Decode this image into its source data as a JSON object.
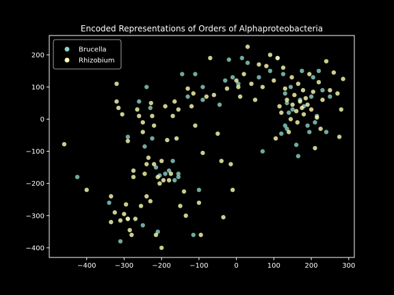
{
  "chart_data": {
    "type": "scatter",
    "title": "Encoded Representations of Orders of Alphaproteobacteria",
    "xlabel": "",
    "ylabel": "",
    "xlim": [
      -500,
      315
    ],
    "ylim": [
      -430,
      260
    ],
    "xticks": [
      -400,
      -300,
      -200,
      -100,
      0,
      100,
      200,
      300
    ],
    "yticks": [
      -400,
      -300,
      -200,
      -100,
      0,
      100,
      200
    ],
    "grid": false,
    "legend_position": "top-left",
    "series": [
      {
        "name": "Brucella",
        "color": "#8dd3c7",
        "points": [
          [
            -425,
            -180
          ],
          [
            -340,
            -260
          ],
          [
            -310,
            -380
          ],
          [
            -290,
            -55
          ],
          [
            -290,
            -310
          ],
          [
            -260,
            55
          ],
          [
            -250,
            -330
          ],
          [
            -245,
            -85
          ],
          [
            -240,
            100
          ],
          [
            -230,
            35
          ],
          [
            -225,
            -60
          ],
          [
            -215,
            -150
          ],
          [
            -210,
            -350
          ],
          [
            -205,
            -175
          ],
          [
            -190,
            -170
          ],
          [
            -180,
            -160
          ],
          [
            -170,
            -130
          ],
          [
            -165,
            -190
          ],
          [
            -155,
            -180
          ],
          [
            -155,
            -170
          ],
          [
            -145,
            140
          ],
          [
            -130,
            70
          ],
          [
            -115,
            -360
          ],
          [
            -110,
            140
          ],
          [
            -100,
            -220
          ],
          [
            -90,
            100
          ],
          [
            -90,
            60
          ],
          [
            -45,
            45
          ],
          [
            -30,
            120
          ],
          [
            -20,
            185
          ],
          [
            -10,
            130
          ],
          [
            5,
            110
          ],
          [
            15,
            190
          ],
          [
            30,
            175
          ],
          [
            60,
            130
          ],
          [
            70,
            -100
          ],
          [
            90,
            150
          ],
          [
            110,
            190
          ],
          [
            120,
            -45
          ],
          [
            125,
            140
          ],
          [
            130,
            -20
          ],
          [
            130,
            80
          ],
          [
            135,
            -30
          ],
          [
            135,
            50
          ],
          [
            140,
            20
          ],
          [
            145,
            100
          ],
          [
            150,
            30
          ],
          [
            160,
            -80
          ],
          [
            165,
            -115
          ],
          [
            170,
            60
          ],
          [
            175,
            150
          ],
          [
            180,
            40
          ],
          [
            190,
            -20
          ],
          [
            195,
            -40
          ],
          [
            200,
            70
          ],
          [
            205,
            130
          ],
          [
            210,
            -10
          ],
          [
            215,
            10
          ],
          [
            220,
            150
          ],
          [
            230,
            90
          ],
          [
            240,
            -40
          ],
          [
            250,
            70
          ]
        ]
      },
      {
        "name": "Rhizobium",
        "color": "#ffffb3",
        "points": [
          [
            -460,
            -78
          ],
          [
            -400,
            -220
          ],
          [
            -335,
            -240
          ],
          [
            -335,
            -320
          ],
          [
            -325,
            -290
          ],
          [
            -320,
            55
          ],
          [
            -320,
            110
          ],
          [
            -315,
            35
          ],
          [
            -310,
            -315
          ],
          [
            -305,
            15
          ],
          [
            -300,
            -295
          ],
          [
            -295,
            -265
          ],
          [
            -290,
            -310
          ],
          [
            -290,
            -68
          ],
          [
            -285,
            -345
          ],
          [
            -280,
            -360
          ],
          [
            -275,
            -160
          ],
          [
            -275,
            -180
          ],
          [
            -270,
            -310
          ],
          [
            -265,
            30
          ],
          [
            -260,
            10
          ],
          [
            -255,
            -270
          ],
          [
            -250,
            -10
          ],
          [
            -250,
            -40
          ],
          [
            -245,
            -170
          ],
          [
            -240,
            -240
          ],
          [
            -240,
            -140
          ],
          [
            -235,
            -120
          ],
          [
            -230,
            -255
          ],
          [
            -228,
            50
          ],
          [
            -225,
            10
          ],
          [
            -220,
            -20
          ],
          [
            -220,
            -140
          ],
          [
            -215,
            -360
          ],
          [
            -210,
            -180
          ],
          [
            -205,
            -200
          ],
          [
            -200,
            -400
          ],
          [
            -200,
            -130
          ],
          [
            -195,
            -190
          ],
          [
            -190,
            40
          ],
          [
            -185,
            -65
          ],
          [
            -180,
            -190
          ],
          [
            -175,
            -170
          ],
          [
            -170,
            10
          ],
          [
            -165,
            55
          ],
          [
            -160,
            -60
          ],
          [
            -155,
            30
          ],
          [
            -150,
            -270
          ],
          [
            -140,
            -225
          ],
          [
            -135,
            -300
          ],
          [
            -130,
            95
          ],
          [
            -120,
            40
          ],
          [
            -115,
            80
          ],
          [
            -110,
            -20
          ],
          [
            -100,
            -260
          ],
          [
            -95,
            -360
          ],
          [
            -90,
            -105
          ],
          [
            -80,
            70
          ],
          [
            -70,
            190
          ],
          [
            -60,
            75
          ],
          [
            -50,
            -45
          ],
          [
            -40,
            -130
          ],
          [
            -35,
            -305
          ],
          [
            -25,
            95
          ],
          [
            -15,
            -140
          ],
          [
            -10,
            -220
          ],
          [
            0,
            120
          ],
          [
            5,
            100
          ],
          [
            10,
            70
          ],
          [
            20,
            140
          ],
          [
            30,
            225
          ],
          [
            40,
            110
          ],
          [
            50,
            60
          ],
          [
            60,
            170
          ],
          [
            70,
            100
          ],
          [
            80,
            165
          ],
          [
            90,
            200
          ],
          [
            100,
            120
          ],
          [
            105,
            -60
          ],
          [
            110,
            190
          ],
          [
            115,
            40
          ],
          [
            120,
            20
          ],
          [
            125,
            160
          ],
          [
            130,
            95
          ],
          [
            135,
            60
          ],
          [
            140,
            -40
          ],
          [
            145,
            0
          ],
          [
            148,
            130
          ],
          [
            150,
            45
          ],
          [
            155,
            75
          ],
          [
            160,
            25
          ],
          [
            163,
            -10
          ],
          [
            165,
            110
          ],
          [
            170,
            55
          ],
          [
            175,
            35
          ],
          [
            178,
            90
          ],
          [
            180,
            15
          ],
          [
            185,
            65
          ],
          [
            190,
            45
          ],
          [
            195,
            140
          ],
          [
            200,
            30
          ],
          [
            205,
            85
          ],
          [
            210,
            -90
          ],
          [
            215,
            5
          ],
          [
            220,
            115
          ],
          [
            225,
            -30
          ],
          [
            230,
            60
          ],
          [
            240,
            180
          ],
          [
            250,
            90
          ],
          [
            260,
            145
          ],
          [
            270,
            80
          ],
          [
            275,
            -55
          ],
          [
            280,
            30
          ],
          [
            285,
            125
          ]
        ]
      }
    ]
  }
}
